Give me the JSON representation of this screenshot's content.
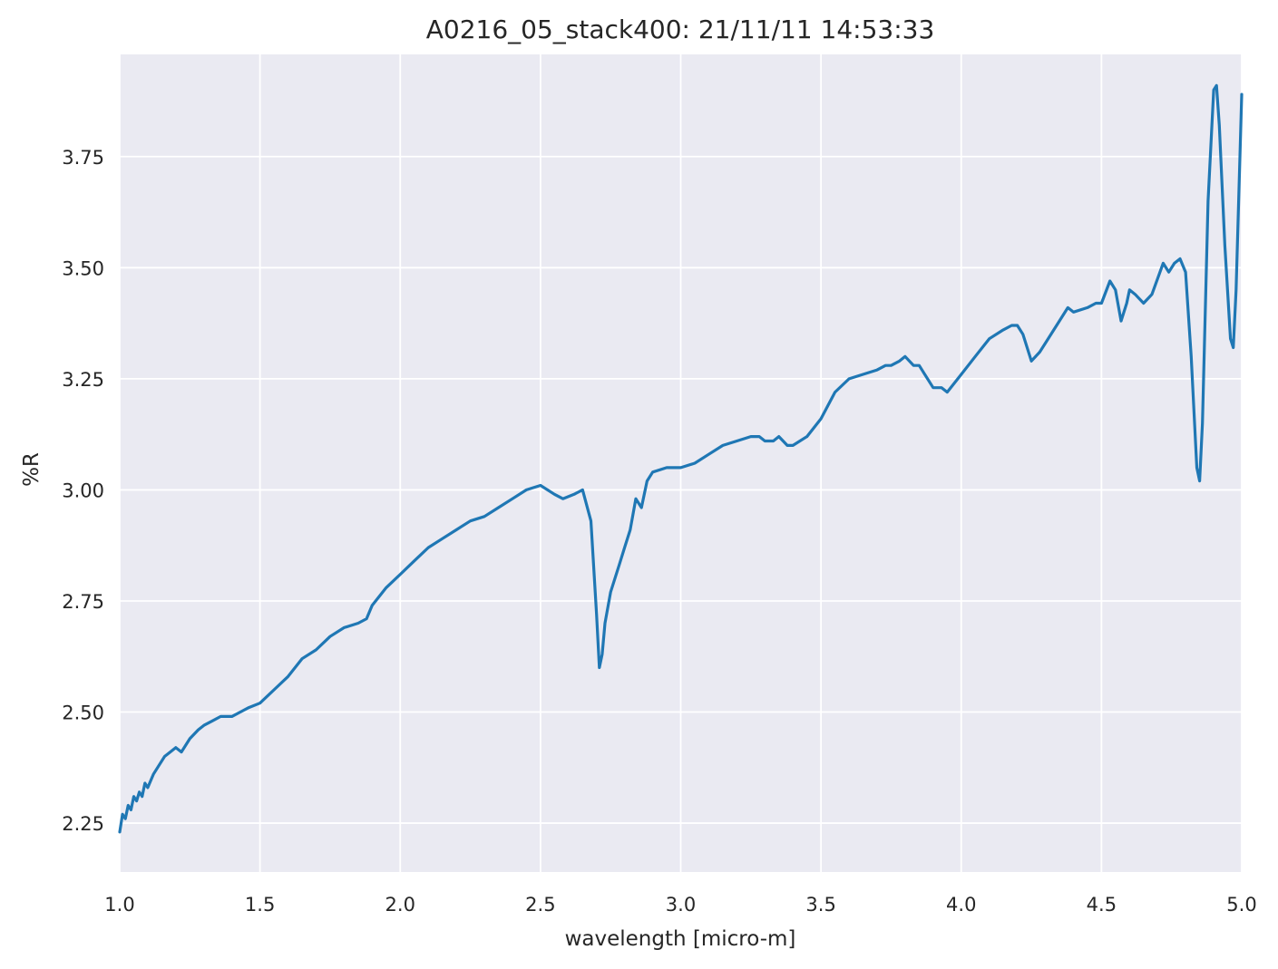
{
  "chart_data": {
    "type": "line",
    "title": "A0216_05_stack400:  21/11/11 14:53:33",
    "xlabel": "wavelength [micro-m]",
    "ylabel": "%R",
    "xlim": [
      1.0,
      5.0
    ],
    "ylim": [
      2.14,
      3.98
    ],
    "x_ticks": [
      "1.0",
      "1.5",
      "2.0",
      "2.5",
      "3.0",
      "3.5",
      "4.0",
      "4.5",
      "5.0"
    ],
    "y_ticks": [
      "2.25",
      "2.50",
      "2.75",
      "3.00",
      "3.25",
      "3.50",
      "3.75"
    ],
    "grid": true,
    "legend": "none",
    "series": [
      {
        "color": "#1f77b4",
        "x": [
          1.0,
          1.01,
          1.02,
          1.03,
          1.04,
          1.05,
          1.06,
          1.07,
          1.08,
          1.09,
          1.1,
          1.12,
          1.14,
          1.16,
          1.18,
          1.2,
          1.22,
          1.25,
          1.28,
          1.3,
          1.33,
          1.36,
          1.4,
          1.43,
          1.46,
          1.5,
          1.55,
          1.6,
          1.65,
          1.7,
          1.75,
          1.8,
          1.85,
          1.88,
          1.9,
          1.95,
          2.0,
          2.05,
          2.1,
          2.15,
          2.2,
          2.25,
          2.3,
          2.35,
          2.4,
          2.45,
          2.5,
          2.55,
          2.58,
          2.62,
          2.65,
          2.68,
          2.7,
          2.71,
          2.72,
          2.73,
          2.75,
          2.78,
          2.8,
          2.82,
          2.84,
          2.86,
          2.88,
          2.9,
          2.95,
          3.0,
          3.05,
          3.1,
          3.15,
          3.2,
          3.25,
          3.28,
          3.3,
          3.33,
          3.35,
          3.38,
          3.4,
          3.45,
          3.5,
          3.55,
          3.6,
          3.65,
          3.7,
          3.73,
          3.75,
          3.78,
          3.8,
          3.83,
          3.85,
          3.9,
          3.93,
          3.95,
          4.0,
          4.05,
          4.1,
          4.15,
          4.18,
          4.2,
          4.22,
          4.25,
          4.28,
          4.3,
          4.35,
          4.38,
          4.4,
          4.45,
          4.48,
          4.5,
          4.53,
          4.55,
          4.57,
          4.59,
          4.6,
          4.62,
          4.65,
          4.68,
          4.72,
          4.74,
          4.76,
          4.78,
          4.8,
          4.82,
          4.84,
          4.85,
          4.86,
          4.88,
          4.9,
          4.91,
          4.92,
          4.94,
          4.96,
          4.97,
          4.98,
          5.0
        ],
        "y": [
          2.23,
          2.27,
          2.26,
          2.29,
          2.28,
          2.31,
          2.3,
          2.32,
          2.31,
          2.34,
          2.33,
          2.36,
          2.38,
          2.4,
          2.41,
          2.42,
          2.41,
          2.44,
          2.46,
          2.47,
          2.48,
          2.49,
          2.49,
          2.5,
          2.51,
          2.52,
          2.55,
          2.58,
          2.62,
          2.64,
          2.67,
          2.69,
          2.7,
          2.71,
          2.74,
          2.78,
          2.81,
          2.84,
          2.87,
          2.89,
          2.91,
          2.93,
          2.94,
          2.96,
          2.98,
          3.0,
          3.01,
          2.99,
          2.98,
          2.99,
          3.0,
          2.93,
          2.72,
          2.6,
          2.63,
          2.7,
          2.77,
          2.83,
          2.87,
          2.91,
          2.98,
          2.96,
          3.02,
          3.04,
          3.05,
          3.05,
          3.06,
          3.08,
          3.1,
          3.11,
          3.12,
          3.12,
          3.11,
          3.11,
          3.12,
          3.1,
          3.1,
          3.12,
          3.16,
          3.22,
          3.25,
          3.26,
          3.27,
          3.28,
          3.28,
          3.29,
          3.3,
          3.28,
          3.28,
          3.23,
          3.23,
          3.22,
          3.26,
          3.3,
          3.34,
          3.36,
          3.37,
          3.37,
          3.35,
          3.29,
          3.31,
          3.33,
          3.38,
          3.41,
          3.4,
          3.41,
          3.42,
          3.42,
          3.47,
          3.45,
          3.38,
          3.42,
          3.45,
          3.44,
          3.42,
          3.44,
          3.51,
          3.49,
          3.51,
          3.52,
          3.49,
          3.3,
          3.05,
          3.02,
          3.15,
          3.65,
          3.9,
          3.91,
          3.82,
          3.55,
          3.34,
          3.32,
          3.45,
          3.89
        ]
      }
    ]
  }
}
